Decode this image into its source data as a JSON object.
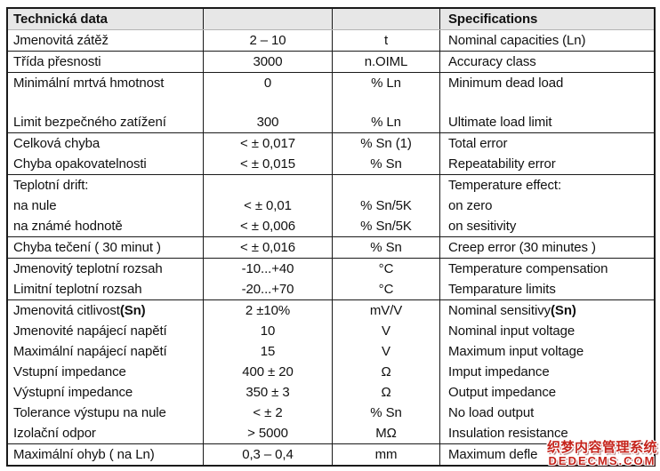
{
  "header": {
    "left": "Technická data",
    "right": "Specifications"
  },
  "table": {
    "rows": [
      {
        "label": "Jmenovitá zátěž",
        "value": "2 – 10",
        "unit": "t",
        "spec": "Nominal capacities (Ln)"
      },
      {
        "label": "Třída přesnosti",
        "value": "3000",
        "unit": "n.OIML",
        "spec": "Accuracy class",
        "sep": true
      },
      {
        "label": "Minimální mrtvá hmotnost",
        "value": "0",
        "unit": "% Ln",
        "spec": "Minimum dead load",
        "sep": true
      },
      {
        "label": "",
        "value": "",
        "unit": "",
        "spec": "",
        "spacer": true
      },
      {
        "label": "Limit bezpečného zatížení",
        "value": "300",
        "unit": "% Ln",
        "spec": "Ultimate load limit"
      },
      {
        "label": "Celková chyba",
        "value": "< ± 0,017",
        "unit": "% Sn (1)",
        "spec": "Total error",
        "sep": true
      },
      {
        "label": "Chyba opakovatelnosti",
        "value": "< ± 0,015",
        "unit": "% Sn",
        "spec": "Repeatability error"
      },
      {
        "label": "Teplotní drift:",
        "value": "",
        "unit": "",
        "spec": "Temperature effect:",
        "sep": true
      },
      {
        "label": "na nule",
        "value": "< ± 0,01",
        "unit": "% Sn/5K",
        "spec": "on zero"
      },
      {
        "label": "na známé hodnotě",
        "value": "< ± 0,006",
        "unit": "% Sn/5K",
        "spec": "on sesitivity"
      },
      {
        "label": "Chyba tečení ( 30 minut )",
        "value": "< ± 0,016",
        "unit": "% Sn",
        "spec": "Creep error (30 minutes )",
        "sep": true
      },
      {
        "label": "Jmenovitý teplotní rozsah",
        "value": "-10...+40",
        "unit": "°C",
        "spec": "Temperature compensation",
        "sep": true
      },
      {
        "label": "Limitní teplotní rozsah",
        "value": "-20...+70",
        "unit": "°C",
        "spec": "Temparature limits"
      },
      {
        "label": "Jmenovitá citlivost ",
        "label_bold": "(Sn)",
        "value": "2 ±10%",
        "unit": "mV/V",
        "spec": "Nominal sensitivy ",
        "spec_bold": "(Sn)",
        "sep": true
      },
      {
        "label": "Jmenovité napájecí napětí",
        "value": "10",
        "unit": "V",
        "spec": "Nominal input voltage"
      },
      {
        "label": "Maximální napájecí napětí",
        "value": "15",
        "unit": "V",
        "spec": "Maximum input voltage"
      },
      {
        "label": "Vstupní impedance",
        "value": "400 ± 20",
        "unit": "Ω",
        "spec": "Imput impedance"
      },
      {
        "label": "Výstupní impedance",
        "value": "350 ± 3",
        "unit": "Ω",
        "spec": "Output impedance"
      },
      {
        "label": "Tolerance výstupu na nule",
        "value": "< ± 2",
        "unit": "% Sn",
        "spec": "No load output"
      },
      {
        "label": "Izolační odpor",
        "value": "> 5000",
        "unit": "MΩ",
        "spec": "Insulation resistance"
      },
      {
        "label": "Maximální ohyb ( na Ln)",
        "value": "0,3 – 0,4",
        "unit": "mm",
        "spec": "Maximum defle",
        "sep": true
      }
    ]
  },
  "watermark": {
    "line1": "织梦内容管理系统",
    "line2": "DEDECMS.COM"
  },
  "colors": {
    "header_bg": "#e7e7e7",
    "border": "#1a1a1a",
    "text": "#111111",
    "watermark_red": "#c5231b"
  }
}
